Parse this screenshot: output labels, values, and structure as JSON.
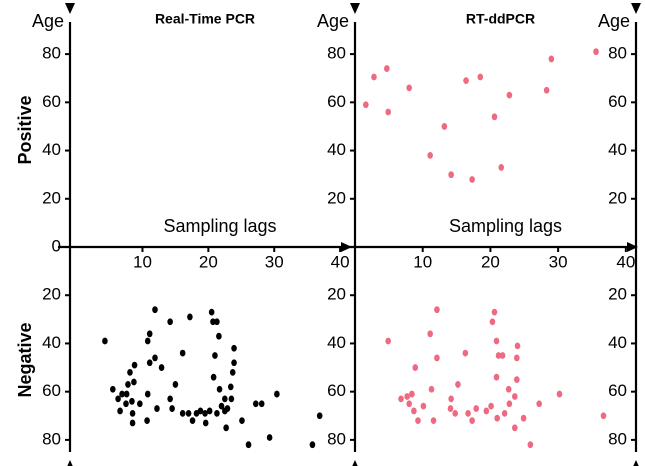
{
  "chart_data": [
    {
      "type": "scatter",
      "title": "Real-Time PCR",
      "xlabel": "Sampling lags",
      "ylabel": "Age",
      "xlim": [
        -1,
        41.5
      ],
      "xticks": [
        10,
        20,
        30,
        40
      ],
      "ylim": [
        0,
        90
      ],
      "yticks": [
        0,
        20,
        40,
        60,
        80
      ],
      "color": "#000000",
      "positive": {
        "x": [],
        "values": []
      },
      "negative": {
        "x": [
          4.3,
          5.5,
          6.3,
          6.6,
          6.9,
          7.5,
          7.6,
          7.8,
          8.1,
          8.4,
          8.5,
          8.5,
          8.8,
          8.7,
          9.6,
          10.7,
          10.8,
          11.1,
          10.8,
          11.1,
          11.9,
          11.9,
          12.2,
          12.9,
          14.2,
          14.2,
          14.5,
          15,
          16.1,
          16.1,
          17,
          17.2,
          17.6,
          18.2,
          18.8,
          19.5,
          19.6,
          20.2,
          20.5,
          20.7,
          20.8,
          21,
          21.3,
          21.3,
          21.6,
          21.7,
          22,
          22.5,
          22.7,
          22.5,
          22.9,
          23.5,
          23.4,
          23.7,
          23.9,
          23.9,
          25.1,
          26.1,
          27.2,
          28.1,
          29.3,
          30.4,
          35.8,
          36.9
        ],
        "values": [
          39,
          59,
          63,
          68,
          61,
          65,
          61,
          57,
          52,
          64,
          69,
          73,
          49,
          56,
          65,
          72,
          61,
          48,
          39,
          36,
          26,
          46,
          67,
          50,
          31,
          63,
          67,
          57,
          44,
          69,
          69,
          29,
          72,
          69,
          68,
          69,
          73,
          68,
          27,
          31,
          54,
          45,
          31,
          69,
          37,
          59,
          66,
          63,
          75,
          68,
          67,
          63,
          58,
          52,
          48,
          42,
          72,
          82,
          65,
          65,
          79,
          61,
          82,
          70
        ]
      }
    },
    {
      "type": "scatter",
      "title": "RT-ddPCR",
      "xlabel": "Sampling lags",
      "ylabel": "Age",
      "xlim": [
        0,
        41.5
      ],
      "xticks": [
        10,
        20,
        30,
        40
      ],
      "ylim": [
        0,
        90
      ],
      "yticks": [
        20,
        40,
        60,
        80
      ],
      "color": "#ee6a80",
      "positive": {
        "x": [
          1.6,
          2.8,
          4.7,
          4.9,
          8,
          11.1,
          13.2,
          14.2,
          16.4,
          17.3,
          18.5,
          20.6,
          21.6,
          22.8,
          28.3,
          29.0,
          35.6
        ],
        "values": [
          59,
          70.5,
          74,
          56,
          66,
          38,
          50,
          30,
          69,
          28,
          70.5,
          54,
          33,
          63,
          65,
          78,
          81
        ]
      },
      "negative": {
        "x": [
          4.9,
          6.8,
          7.7,
          8,
          8.4,
          8.7,
          8.9,
          9.3,
          10.1,
          11.1,
          11.3,
          11.6,
          12.1,
          12.1,
          14.1,
          14.2,
          14.8,
          15.2,
          16.3,
          16.7,
          17.3,
          17.9,
          19.4,
          20.1,
          20.3,
          20.6,
          20.9,
          20.9,
          21.2,
          21.0,
          21.8,
          22.1,
          22.7,
          22.8,
          23.6,
          23.6,
          23.9,
          23.9,
          24,
          24.9,
          25.9,
          27.2,
          30.2,
          36.7
        ],
        "values": [
          39,
          63,
          62,
          65,
          61,
          68,
          50,
          72,
          66,
          36,
          59,
          72,
          26,
          46,
          67,
          63,
          69,
          57,
          44,
          69,
          72,
          67,
          68,
          66,
          31,
          27,
          39,
          54,
          45,
          71,
          45,
          69,
          59,
          65,
          62,
          75,
          55,
          46,
          41,
          71,
          82,
          65,
          61,
          70
        ]
      }
    }
  ],
  "row_labels": [
    "Positive",
    "Negative"
  ]
}
